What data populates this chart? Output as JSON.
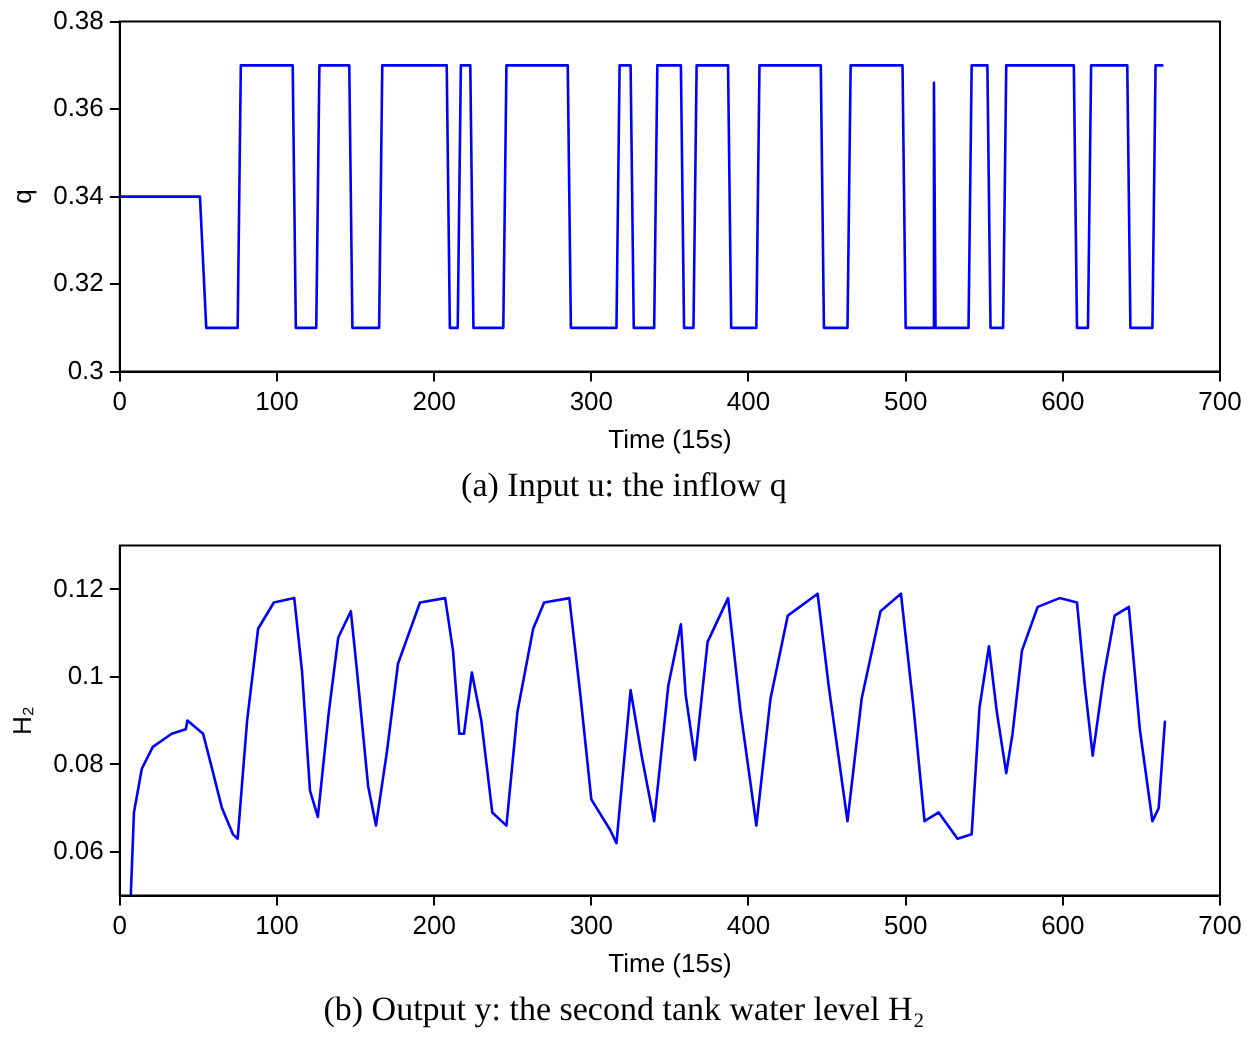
{
  "chart_data": [
    {
      "type": "line",
      "title": "(a) Input u: the inflow q",
      "xlabel": "Time (15s)",
      "ylabel": "q",
      "grid": false,
      "marker": "none",
      "xlim": [
        0,
        700
      ],
      "xticks": [
        0,
        100,
        200,
        300,
        400,
        500,
        600,
        700
      ],
      "ylim": [
        0.3,
        0.38
      ],
      "yticks": [
        0.3,
        0.32,
        0.34,
        0.36,
        0.38
      ],
      "series": [
        {
          "color": "#0000ff",
          "x": [
            0,
            51,
            55,
            75,
            77,
            110,
            112,
            125,
            127,
            146,
            148,
            165,
            167,
            208,
            210,
            215,
            217,
            223,
            225,
            244,
            246,
            285,
            287,
            316,
            318,
            325,
            327,
            340,
            342,
            357,
            359,
            365,
            367,
            387,
            389,
            405,
            407,
            446,
            448,
            463,
            465,
            498,
            500,
            517,
            518,
            519,
            540,
            542,
            552,
            554,
            562,
            564,
            607,
            609,
            616,
            618,
            641,
            643,
            657,
            659,
            664
          ],
          "values": [
            0.34,
            0.34,
            0.31,
            0.31,
            0.37,
            0.37,
            0.31,
            0.31,
            0.37,
            0.37,
            0.31,
            0.31,
            0.37,
            0.37,
            0.31,
            0.31,
            0.37,
            0.37,
            0.31,
            0.31,
            0.37,
            0.37,
            0.31,
            0.31,
            0.37,
            0.37,
            0.31,
            0.31,
            0.37,
            0.37,
            0.31,
            0.31,
            0.37,
            0.37,
            0.31,
            0.31,
            0.37,
            0.37,
            0.31,
            0.31,
            0.37,
            0.37,
            0.31,
            0.31,
            0.366,
            0.31,
            0.31,
            0.37,
            0.37,
            0.31,
            0.31,
            0.37,
            0.37,
            0.31,
            0.31,
            0.37,
            0.37,
            0.31,
            0.31,
            0.37,
            0.37
          ]
        }
      ]
    },
    {
      "type": "line",
      "title": "(b) Output y: the second tank water level H₂",
      "xlabel": "Time (15s)",
      "ylabel": "H₂",
      "grid": false,
      "marker": "none",
      "xlim": [
        0,
        700
      ],
      "xticks": [
        0,
        100,
        200,
        300,
        400,
        500,
        600,
        700
      ],
      "ylim": [
        0.05,
        0.13
      ],
      "yticks": [
        0.06,
        0.08,
        0.1,
        0.12
      ],
      "series": [
        {
          "color": "#0000ff",
          "x": [
            7,
            9,
            14,
            21,
            33,
            42,
            43,
            53,
            58,
            65,
            72,
            75,
            81,
            88,
            98,
            111,
            116,
            121,
            126,
            133,
            139,
            147,
            151,
            158,
            163,
            170,
            177,
            191,
            207,
            212,
            216,
            219,
            224,
            230,
            237,
            246,
            253,
            263,
            270,
            286,
            293,
            300,
            312,
            316,
            325,
            332,
            340,
            349,
            357,
            360,
            366,
            374,
            387,
            395,
            405,
            414,
            425,
            444,
            451,
            463,
            472,
            484,
            497,
            505,
            512,
            521,
            533,
            542,
            547,
            553,
            558,
            564,
            568,
            574,
            584,
            598,
            609,
            614,
            619,
            626,
            633,
            642,
            649,
            657,
            661,
            665
          ],
          "values": [
            0.05,
            0.069,
            0.079,
            0.084,
            0.087,
            0.088,
            0.09,
            0.087,
            0.08,
            0.07,
            0.064,
            0.063,
            0.09,
            0.111,
            0.117,
            0.118,
            0.101,
            0.074,
            0.068,
            0.092,
            0.109,
            0.115,
            0.101,
            0.075,
            0.066,
            0.083,
            0.103,
            0.117,
            0.118,
            0.106,
            0.087,
            0.087,
            0.101,
            0.09,
            0.069,
            0.066,
            0.092,
            0.111,
            0.117,
            0.118,
            0.096,
            0.072,
            0.065,
            0.062,
            0.097,
            0.082,
            0.067,
            0.098,
            0.112,
            0.096,
            0.081,
            0.108,
            0.118,
            0.092,
            0.066,
            0.095,
            0.114,
            0.119,
            0.098,
            0.067,
            0.095,
            0.115,
            0.119,
            0.093,
            0.067,
            0.069,
            0.063,
            0.064,
            0.093,
            0.107,
            0.092,
            0.078,
            0.087,
            0.106,
            0.116,
            0.118,
            0.117,
            0.098,
            0.082,
            0.1,
            0.114,
            0.116,
            0.088,
            0.067,
            0.07,
            0.09
          ]
        }
      ]
    }
  ]
}
